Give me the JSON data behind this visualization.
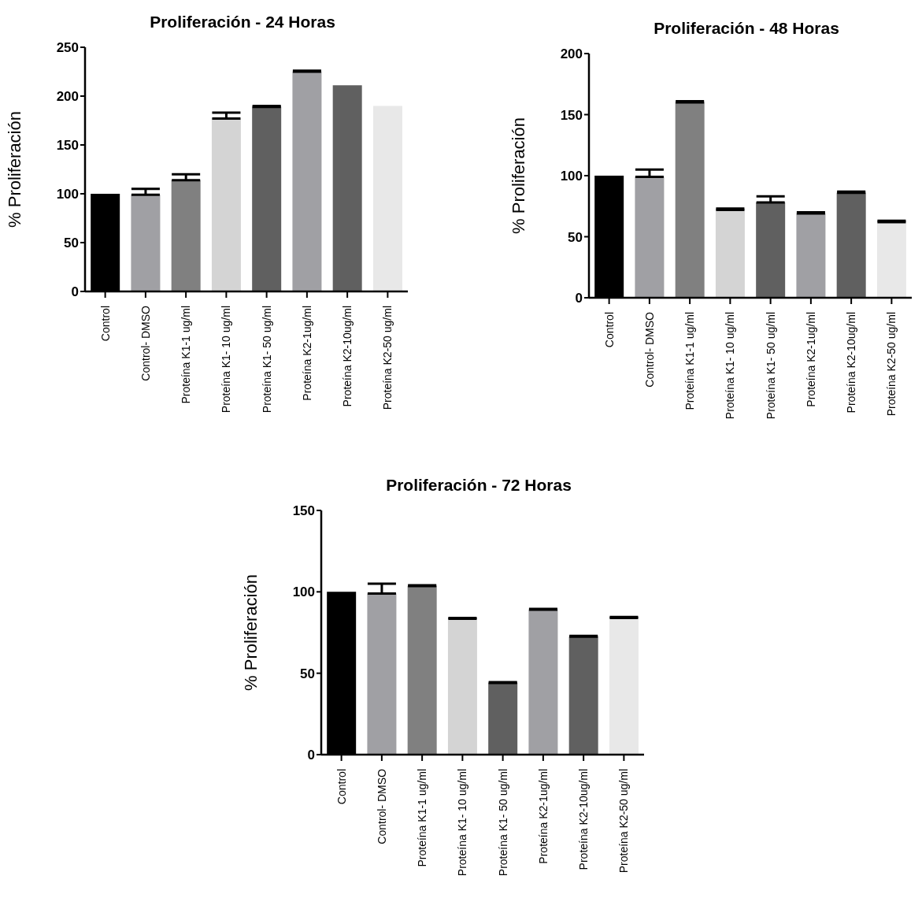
{
  "chart_data": [
    {
      "type": "bar",
      "title": "Proliferación - 24 Horas",
      "ylabel": "% Proliferación",
      "categories": [
        "Control",
        "Control- DMSO",
        "Proteína K1-1 ug/ml",
        "Proteína K1- 10 ug/ml",
        "Proteína K1- 50 ug/ml",
        "Proteína K2-1ug/ml",
        "Proteína K2-10ug/ml",
        "Proteína K2-50 ug/ml"
      ],
      "values": [
        100,
        99,
        114,
        177,
        189,
        225,
        211,
        190
      ],
      "errors": [
        null,
        [
          99,
          105
        ],
        [
          114,
          120
        ],
        [
          177,
          183
        ],
        [
          189,
          190
        ],
        [
          225,
          226
        ],
        null,
        null
      ],
      "colors": [
        "#000000",
        "#a0a0a4",
        "#808080",
        "#d4d4d4",
        "#606060",
        "#a0a0a4",
        "#606060",
        "#e8e8e8"
      ],
      "ylim": [
        0,
        250
      ],
      "yticks": [
        0,
        50,
        100,
        150,
        200,
        250
      ],
      "grid": false,
      "legend": false
    },
    {
      "type": "bar",
      "title": "Proliferación - 48 Horas",
      "ylabel": "% Proliferación",
      "categories": [
        "Control",
        "Control- DMSO",
        "Proteína K1-1 ug/ml",
        "Proteína K1- 10 ug/ml",
        "Proteína K1- 50 ug/ml",
        "Proteína K2-1ug/ml",
        "Proteína K2-10ug/ml",
        "Proteína K2-50 ug/ml"
      ],
      "values": [
        100,
        99,
        160,
        72,
        78,
        69,
        86,
        62
      ],
      "errors": [
        null,
        [
          99,
          105
        ],
        [
          160,
          161
        ],
        [
          72,
          73
        ],
        [
          78,
          83
        ],
        [
          69,
          70
        ],
        [
          86,
          87
        ],
        [
          62,
          63
        ]
      ],
      "colors": [
        "#000000",
        "#a0a0a4",
        "#808080",
        "#d4d4d4",
        "#606060",
        "#a0a0a4",
        "#606060",
        "#e8e8e8"
      ],
      "ylim": [
        0,
        200
      ],
      "yticks": [
        0,
        50,
        100,
        150,
        200
      ],
      "grid": false,
      "legend": false
    },
    {
      "type": "bar",
      "title": "Proliferación - 72 Horas",
      "ylabel": "% Proliferación",
      "categories": [
        "Control",
        "Control- DMSO",
        "Proteína K1-1 ug/ml",
        "Proteína K1- 10 ug/ml",
        "Proteína K1- 50 ug/ml",
        "Proteína K2-1ug/ml",
        "Proteína K2-10ug/ml",
        "Proteína K2-50 ug/ml"
      ],
      "values": [
        100,
        99,
        103.5,
        83.5,
        44,
        89,
        72.5,
        84
      ],
      "errors": [
        null,
        [
          99,
          105
        ],
        [
          103.5,
          104
        ],
        [
          83.5,
          84
        ],
        [
          44,
          44.5
        ],
        [
          89,
          89.5
        ],
        [
          72.5,
          73
        ],
        [
          84,
          84.5
        ]
      ],
      "colors": [
        "#000000",
        "#a0a0a4",
        "#808080",
        "#d4d4d4",
        "#606060",
        "#a0a0a4",
        "#606060",
        "#e8e8e8"
      ],
      "ylim": [
        0,
        150
      ],
      "yticks": [
        0,
        50,
        100,
        150
      ],
      "grid": false,
      "legend": false
    }
  ]
}
